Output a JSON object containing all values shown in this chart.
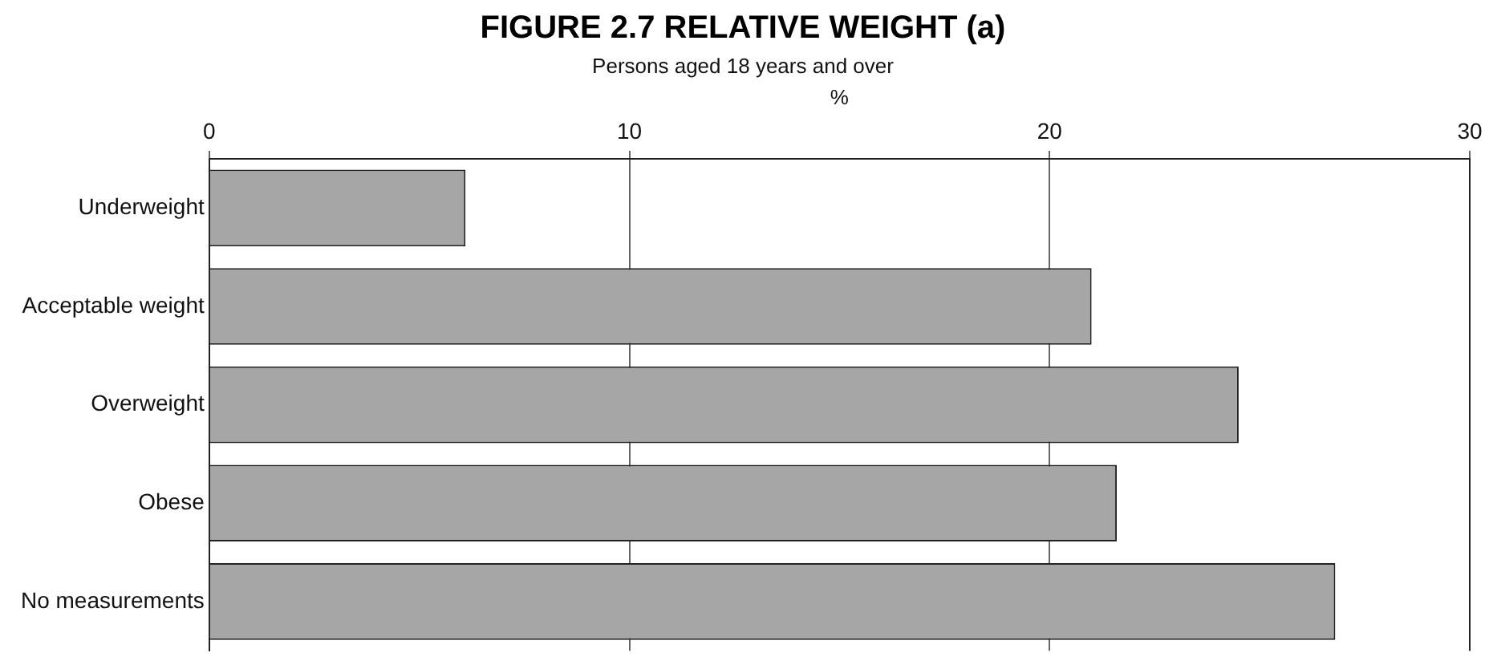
{
  "chart_data": {
    "type": "bar",
    "orientation": "horizontal",
    "title": "FIGURE 2.7 RELATIVE WEIGHT (a)",
    "subtitle": "Persons aged 18 years and over",
    "xlabel": "%",
    "categories": [
      "Underweight",
      "Acceptable weight",
      "Overweight",
      "Obese",
      "No measurements"
    ],
    "values": [
      6.1,
      21.0,
      24.5,
      21.6,
      26.8
    ],
    "color": "#a6a6a6",
    "xlim": [
      0,
      30
    ],
    "xticks": [
      0,
      10,
      20,
      30
    ],
    "grid": "x"
  }
}
